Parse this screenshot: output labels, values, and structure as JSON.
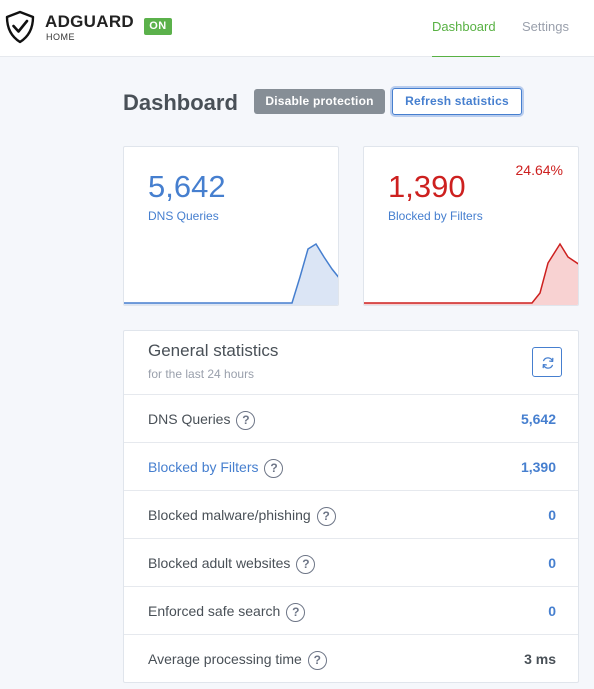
{
  "header": {
    "brand": "ADGUARD",
    "brand_sub": "HOME",
    "status_badge": "ON",
    "nav": [
      {
        "label": "Dashboard",
        "active": true
      },
      {
        "label": "Settings",
        "active": false
      }
    ]
  },
  "page": {
    "title": "Dashboard",
    "disable_button": "Disable protection",
    "refresh_button": "Refresh statistics"
  },
  "cards": {
    "dns_queries": {
      "value": "5,642",
      "label": "DNS Queries",
      "color": "#467fcf"
    },
    "blocked_filters": {
      "value": "1,390",
      "label": "Blocked by Filters",
      "percent": "24.64%",
      "color": "#cd201f"
    }
  },
  "general_stats": {
    "title": "General statistics",
    "subtitle": "for the last 24 hours",
    "refresh_icon": "refresh-icon",
    "rows": [
      {
        "label": "DNS Queries",
        "value": "5,642",
        "label_color": "default",
        "value_color": "#467fcf"
      },
      {
        "label": "Blocked by Filters",
        "value": "1,390",
        "label_color": "#467fcf",
        "value_color": "#467fcf"
      },
      {
        "label": "Blocked malware/phishing",
        "value": "0",
        "label_color": "default",
        "value_color": "#467fcf"
      },
      {
        "label": "Blocked adult websites",
        "value": "0",
        "label_color": "default",
        "value_color": "#467fcf"
      },
      {
        "label": "Enforced safe search",
        "value": "0",
        "label_color": "default",
        "value_color": "#467fcf"
      },
      {
        "label": "Average processing time",
        "value": "3 ms",
        "label_color": "default",
        "value_color": "#495057"
      }
    ],
    "help_glyph": "?"
  },
  "colors": {
    "accent_green": "#58b143",
    "blue": "#467fcf",
    "red": "#cd201f",
    "badge_green": "#5bb14b"
  }
}
